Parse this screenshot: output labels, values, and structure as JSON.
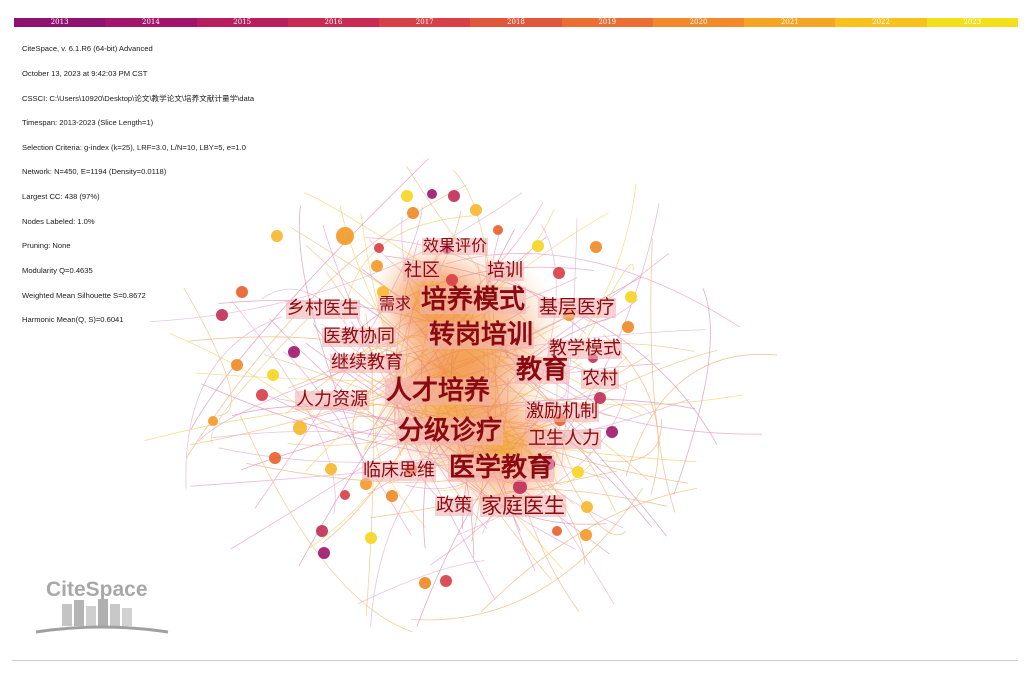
{
  "timeline": {
    "years": [
      "2013",
      "2014",
      "2015",
      "2016",
      "2017",
      "2018",
      "2019",
      "2020",
      "2021",
      "2022",
      "2023"
    ],
    "colors": [
      "#8f1170",
      "#a3156a",
      "#b91d5e",
      "#c82a52",
      "#d83f47",
      "#e2563c",
      "#eb6f32",
      "#f2892a",
      "#f6a423",
      "#f8c11c",
      "#f4e01a"
    ]
  },
  "info_lines": [
    "CiteSpace, v. 6.1.R6 (64-bit) Advanced",
    "October 13, 2023 at 9:42:03 PM CST",
    "CSSCI: C:\\Users\\10920\\Desktop\\论文\\教学论文\\培养文献计量学\\data",
    "Timespan: 2013-2023 (Slice Length=1)",
    "Selection Criteria: g-index (k=25), LRF=3.0, L/N=10, LBY=5, e=1.0",
    "Network: N=450, E=1194 (Density=0.0118)",
    "Largest CC: 438 (97%)",
    "Nodes Labeled: 1.0%",
    "Pruning: None",
    "Modularity Q=0.4635",
    "Weighted Mean Silhouette S=0.8672",
    "Harmonic Mean(Q, S)=0.6041"
  ],
  "keywords": [
    {
      "id": "kw-xiaoguopingjia",
      "text": "效果评价",
      "weight": 3
    },
    {
      "id": "kw-shequ",
      "text": "社区",
      "weight": 4
    },
    {
      "id": "kw-peixun",
      "text": "培训",
      "weight": 4
    },
    {
      "id": "kw-xiangcunyisheng",
      "text": "乡村医生",
      "weight": 4
    },
    {
      "id": "kw-xuqiu",
      "text": "需求",
      "weight": 3
    },
    {
      "id": "kw-peiyangmoshi",
      "text": "培养模式",
      "weight": 8
    },
    {
      "id": "kw-jicengyiliao",
      "text": "基层医疗",
      "weight": 5
    },
    {
      "id": "kw-yijiaoxietong",
      "text": "医教协同",
      "weight": 4
    },
    {
      "id": "kw-zhuangangpeixun",
      "text": "转岗培训",
      "weight": 8
    },
    {
      "id": "kw-jiaoxuemoshi",
      "text": "教学模式",
      "weight": 4
    },
    {
      "id": "kw-jixujiaoyu",
      "text": "继续教育",
      "weight": 4
    },
    {
      "id": "kw-jiaoyu",
      "text": "教育",
      "weight": 8
    },
    {
      "id": "kw-nongcun",
      "text": "农村",
      "weight": 4
    },
    {
      "id": "kw-renliziyuan",
      "text": "人力资源",
      "weight": 4
    },
    {
      "id": "kw-rencaipeiyang",
      "text": "人才培养",
      "weight": 8
    },
    {
      "id": "kw-jilijizhi",
      "text": "激励机制",
      "weight": 4
    },
    {
      "id": "kw-fenjizhenliao",
      "text": "分级诊疗",
      "weight": 8
    },
    {
      "id": "kw-weishengrenli",
      "text": "卫生人力",
      "weight": 4
    },
    {
      "id": "kw-linchuangsiwei",
      "text": "临床思维",
      "weight": 4
    },
    {
      "id": "kw-yixuejiaoyu",
      "text": "医学教育",
      "weight": 8
    },
    {
      "id": "kw-zhengce",
      "text": "政策",
      "weight": 4
    },
    {
      "id": "kw-jiatingyisheng",
      "text": "家庭医生",
      "weight": 6
    }
  ],
  "logo": {
    "text": "CiteSpace"
  }
}
